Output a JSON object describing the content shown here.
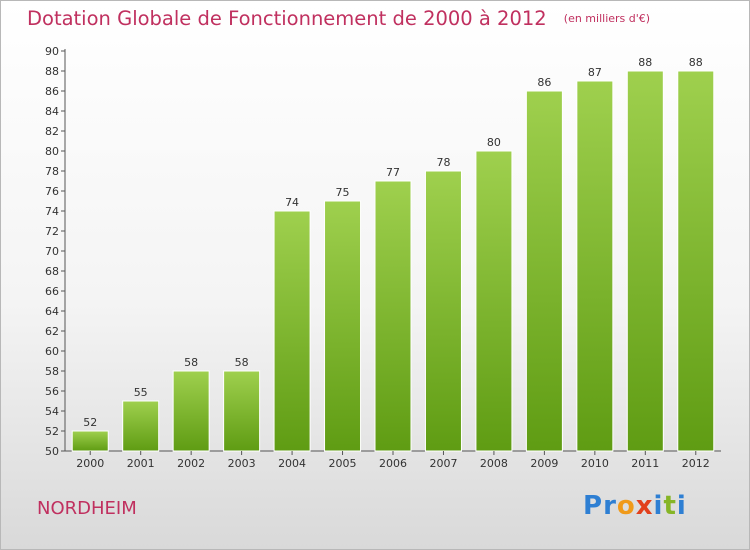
{
  "header": {
    "title": "Dotation Globale de Fonctionnement de 2000 à 2012",
    "unit": "(en milliers d'€)"
  },
  "commune": "NORDHEIM",
  "logo": {
    "letters": [
      {
        "ch": "P",
        "color": "#2e7fd3"
      },
      {
        "ch": "r",
        "color": "#2e7fd3"
      },
      {
        "ch": "o",
        "color": "#f09a1a"
      },
      {
        "ch": "x",
        "color": "#e2401c"
      },
      {
        "ch": "i",
        "color": "#2e7fd3"
      },
      {
        "ch": "t",
        "color": "#86b526"
      },
      {
        "ch": "i",
        "color": "#2e7fd3"
      }
    ]
  },
  "chart_data": {
    "type": "bar",
    "title": "Dotation Globale de Fonctionnement de 2000 à 2012",
    "subtitle": "(en milliers d'€)",
    "xlabel": "",
    "ylabel": "",
    "categories": [
      "2000",
      "2001",
      "2002",
      "2003",
      "2004",
      "2005",
      "2006",
      "2007",
      "2008",
      "2009",
      "2010",
      "2011",
      "2012"
    ],
    "values": [
      52,
      55,
      58,
      58,
      74,
      75,
      77,
      78,
      80,
      86,
      87,
      88,
      88
    ],
    "ylim": [
      50,
      90
    ],
    "ytick_step": 2,
    "grid": false,
    "bar_color_top": "#9fd04e",
    "bar_color_bottom": "#5f9c13",
    "title_color": "#c0305f"
  }
}
